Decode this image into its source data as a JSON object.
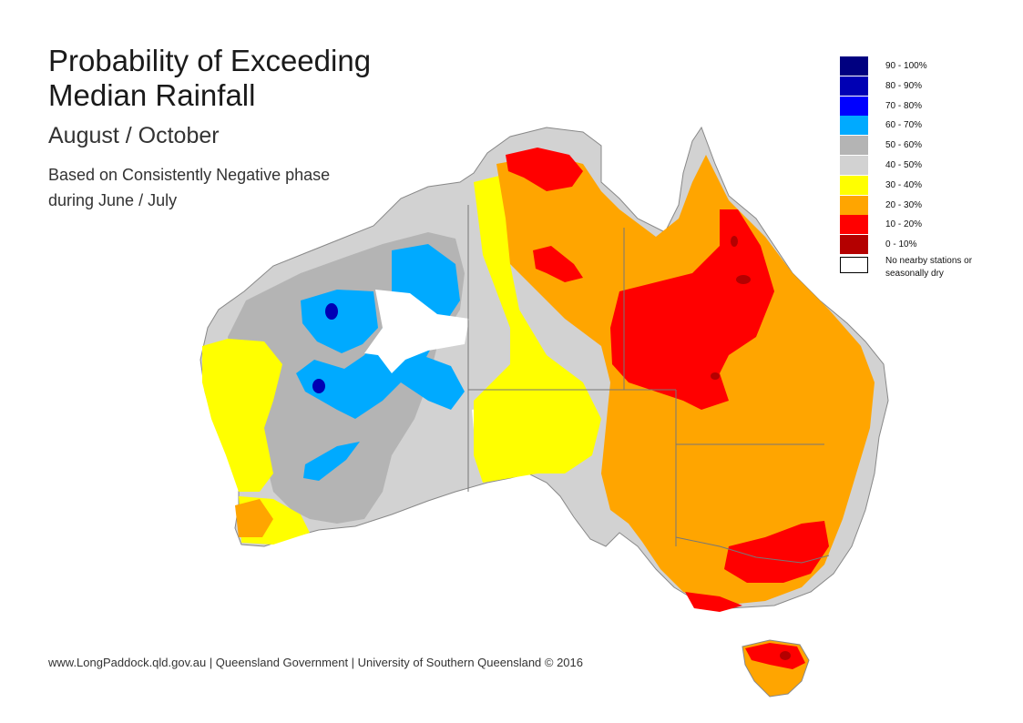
{
  "title_line1": "Probability of Exceeding",
  "title_line2": "Median Rainfall",
  "subtitle": "August / October",
  "description_line1": "Based on Consistently Negative phase",
  "description_line2": "during June / July",
  "footer": "www.LongPaddock.qld.gov.au | Queensland Government | University of Southern Queensland © 2016",
  "legend": [
    {
      "label": "90 - 100%",
      "color": "#000080"
    },
    {
      "label": "80 - 90%",
      "color": "#0000b4"
    },
    {
      "label": "70 - 80%",
      "color": "#0000ff"
    },
    {
      "label": "60 - 70%",
      "color": "#00aaff"
    },
    {
      "label": "50 - 60%",
      "color": "#b4b4b4"
    },
    {
      "label": "40 - 50%",
      "color": "#d2d2d2"
    },
    {
      "label": "30 - 40%",
      "color": "#ffff00"
    },
    {
      "label": "20 - 30%",
      "color": "#ffa500"
    },
    {
      "label": "10 - 20%",
      "color": "#ff0000"
    },
    {
      "label": "0 - 10%",
      "color": "#b40000"
    },
    {
      "label": "No nearby stations or seasonally dry",
      "color": "#ffffff"
    }
  ]
}
